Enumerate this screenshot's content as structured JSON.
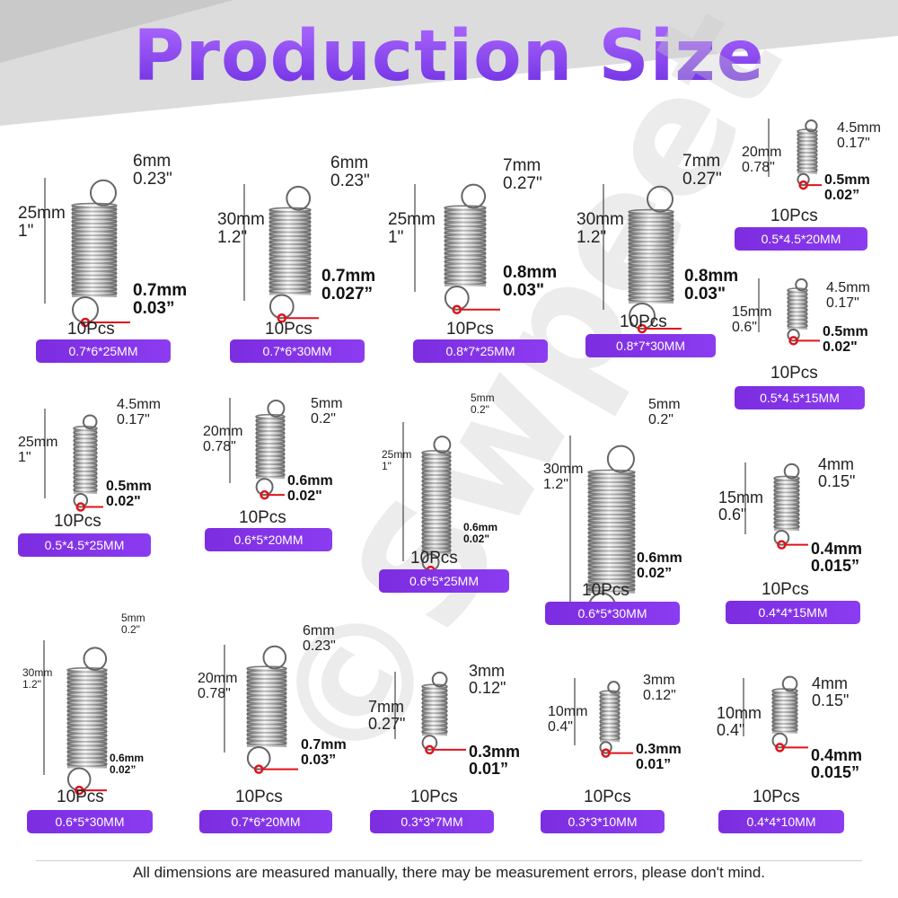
{
  "title": "Production Size",
  "watermark": "©Swpeet",
  "footer": "All dimensions are measured manually, there may be measurement errors, please don't mind.",
  "colors": {
    "accent": "#8b3cf0",
    "hook_marker": "#e0131b",
    "badge_text": "#ffffff"
  },
  "springs": [
    {
      "qty": "10Pcs",
      "size": "0.7*6*25MM",
      "length": [
        "25mm",
        "1\""
      ],
      "hook": [
        "6mm",
        "0.23\""
      ],
      "wire": [
        "0.7mm",
        "0.03”"
      ]
    },
    {
      "qty": "10Pcs",
      "size": "0.7*6*30MM",
      "length": [
        "30mm",
        "1.2\""
      ],
      "hook": [
        "6mm",
        "0.23\""
      ],
      "wire": [
        "0.7mm",
        "0.027”"
      ]
    },
    {
      "qty": "10Pcs",
      "size": "0.8*7*25MM",
      "length": [
        "25mm",
        "1\""
      ],
      "hook": [
        "7mm",
        "0.27\""
      ],
      "wire": [
        "0.8mm",
        "0.03\""
      ]
    },
    {
      "qty": "10Pcs",
      "size": "0.8*7*30MM",
      "length": [
        "30mm",
        "1.2\""
      ],
      "hook": [
        "7mm",
        "0.27\""
      ],
      "wire": [
        "0.8mm",
        "0.03\""
      ]
    },
    {
      "qty": "10Pcs",
      "size": "0.5*4.5*20MM",
      "length": [
        "20mm",
        "0.78\""
      ],
      "hook": [
        "4.5mm",
        "0.17\""
      ],
      "wire": [
        "0.5mm",
        "0.02”"
      ]
    },
    {
      "qty": "10Pcs",
      "size": "0.5*4.5*15MM",
      "length": [
        "15mm",
        "0.6\""
      ],
      "hook": [
        "4.5mm",
        "0.17\""
      ],
      "wire": [
        "0.5mm",
        "0.02\""
      ]
    },
    {
      "qty": "10Pcs",
      "size": "0.5*4.5*25MM",
      "length": [
        "25mm",
        "1\""
      ],
      "hook": [
        "4.5mm",
        "0.17\""
      ],
      "wire": [
        "0.5mm",
        "0.02\""
      ]
    },
    {
      "qty": "10Pcs",
      "size": "0.6*5*20MM",
      "length": [
        "20mm",
        "0.78\""
      ],
      "hook": [
        "5mm",
        "0.2\""
      ],
      "wire": [
        "0.6mm",
        "0.02\""
      ]
    },
    {
      "qty": "10Pcs",
      "size": "0.6*5*25MM",
      "length": [
        "25mm",
        "1\""
      ],
      "hook": [
        "5mm",
        "0.2\""
      ],
      "wire": [
        "0.6mm",
        "0.02\""
      ]
    },
    {
      "qty": "10Pcs",
      "size": "0.6*5*30MM",
      "length": [
        "30mm",
        "1.2\""
      ],
      "hook": [
        "5mm",
        "0.2\""
      ],
      "wire": [
        "0.6mm",
        "0.02”"
      ]
    },
    {
      "qty": "10Pcs",
      "size": "0.4*4*15MM",
      "length": [
        "15mm",
        "0.6\""
      ],
      "hook": [
        "4mm",
        "0.15\""
      ],
      "wire": [
        "0.4mm",
        "0.015”"
      ]
    },
    {
      "qty": "10Pcs",
      "size": "0.6*5*30MM",
      "length": [
        "30mm",
        "1.2\""
      ],
      "hook": [
        "5mm",
        "0.2\""
      ],
      "wire": [
        "0.6mm",
        "0.02”"
      ]
    },
    {
      "qty": "10Pcs",
      "size": "0.7*6*20MM",
      "length": [
        "20mm",
        "0.78\""
      ],
      "hook": [
        "6mm",
        "0.23\""
      ],
      "wire": [
        "0.7mm",
        "0.03”"
      ]
    },
    {
      "qty": "10Pcs",
      "size": "0.3*3*7MM",
      "length": [
        "7mm",
        "0.27\""
      ],
      "hook": [
        "3mm",
        "0.12\""
      ],
      "wire": [
        "0.3mm",
        "0.01”"
      ]
    },
    {
      "qty": "10Pcs",
      "size": "0.3*3*10MM",
      "length": [
        "10mm",
        "0.4\""
      ],
      "hook": [
        "3mm",
        "0.12\""
      ],
      "wire": [
        "0.3mm",
        "0.01”"
      ]
    },
    {
      "qty": "10Pcs",
      "size": "0.4*4*10MM",
      "length": [
        "10mm",
        "0.4\""
      ],
      "hook": [
        "4mm",
        "0.15\""
      ],
      "wire": [
        "0.4mm",
        "0.015”"
      ]
    }
  ]
}
